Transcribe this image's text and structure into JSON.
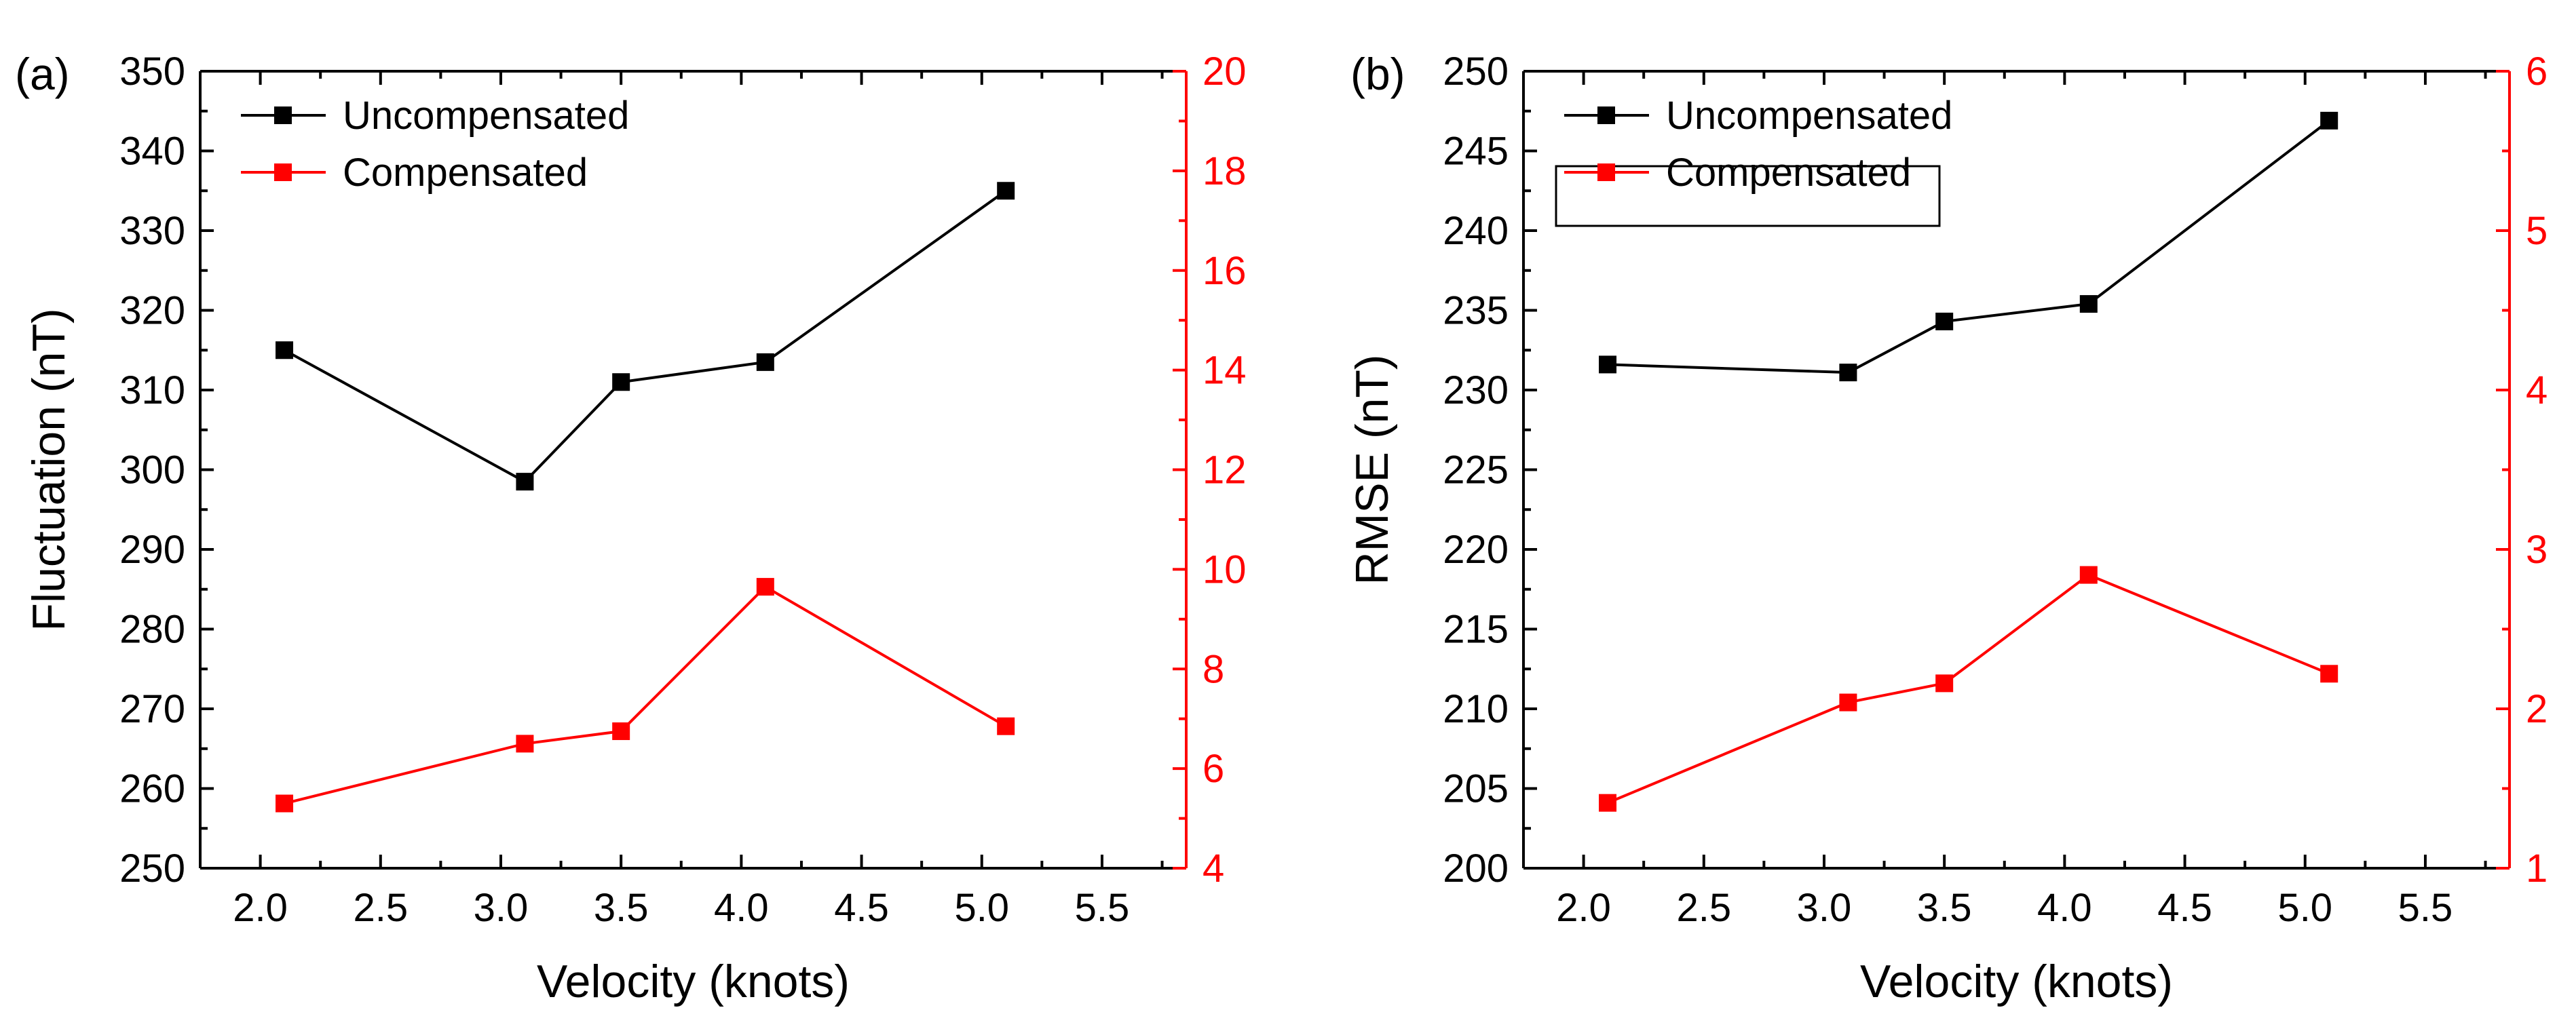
{
  "colors": {
    "primary": "#000000",
    "secondary": "#ff0000",
    "background": "#ffffff"
  },
  "chart_data": [
    {
      "panel_label": "(a)",
      "type": "line",
      "xlabel": "Velocity (knots)",
      "ylabel": "Fluctuation (nT)",
      "y2label": "",
      "xlim": [
        1.75,
        5.85
      ],
      "xticks": [
        2.0,
        2.5,
        3.0,
        3.5,
        4.0,
        4.5,
        5.0,
        5.5
      ],
      "xtick_labels": [
        "2.0",
        "2.5",
        "3.0",
        "3.5",
        "4.0",
        "4.5",
        "5.0",
        "5.5"
      ],
      "ylim": [
        250,
        350
      ],
      "yticks": [
        250,
        260,
        270,
        280,
        290,
        300,
        310,
        320,
        330,
        340,
        350
      ],
      "ytick_labels": [
        "250",
        "260",
        "270",
        "280",
        "290",
        "300",
        "310",
        "320",
        "330",
        "340",
        "350"
      ],
      "y2lim": [
        4,
        20
      ],
      "y2ticks": [
        4,
        6,
        8,
        10,
        12,
        14,
        16,
        18,
        20
      ],
      "y2tick_labels": [
        "4",
        "6",
        "8",
        "10",
        "12",
        "14",
        "16",
        "18",
        "20"
      ],
      "legend_boxed": false,
      "series": [
        {
          "name": "Uncompensated",
          "axis": "left",
          "color": "#000000",
          "x": [
            2.1,
            3.1,
            3.5,
            4.1,
            5.1
          ],
          "values": [
            315,
            298.5,
            311,
            313.5,
            335
          ]
        },
        {
          "name": "Compensated",
          "axis": "right",
          "color": "#ff0000",
          "x": [
            2.1,
            3.1,
            3.5,
            4.1,
            5.1
          ],
          "values": [
            5.3,
            6.5,
            6.75,
            9.65,
            6.85
          ]
        }
      ]
    },
    {
      "panel_label": "(b)",
      "type": "line",
      "xlabel": "Velocity (knots)",
      "ylabel": "RMSE (nT)",
      "y2label": "",
      "xlim": [
        1.75,
        5.85
      ],
      "xticks": [
        2.0,
        2.5,
        3.0,
        3.5,
        4.0,
        4.5,
        5.0,
        5.5
      ],
      "xtick_labels": [
        "2.0",
        "2.5",
        "3.0",
        "3.5",
        "4.0",
        "4.5",
        "5.0",
        "5.5"
      ],
      "ylim": [
        200,
        250
      ],
      "yticks": [
        200,
        205,
        210,
        215,
        220,
        225,
        230,
        235,
        240,
        245,
        250
      ],
      "ytick_labels": [
        "200",
        "205",
        "210",
        "215",
        "220",
        "225",
        "230",
        "235",
        "240",
        "245",
        "250"
      ],
      "y2lim": [
        1,
        6
      ],
      "y2ticks": [
        1,
        2,
        3,
        4,
        5,
        6
      ],
      "y2tick_labels": [
        "1",
        "2",
        "3",
        "4",
        "5",
        "6"
      ],
      "legend_boxed": true,
      "series": [
        {
          "name": "Uncompensated",
          "axis": "left",
          "color": "#000000",
          "x": [
            2.1,
            3.1,
            3.5,
            4.1,
            5.1
          ],
          "values": [
            231.6,
            231.1,
            234.3,
            235.4,
            246.9
          ]
        },
        {
          "name": "Compensated",
          "axis": "right",
          "color": "#ff0000",
          "x": [
            2.1,
            3.1,
            3.5,
            4.1,
            5.1
          ],
          "values": [
            1.41,
            2.04,
            2.16,
            2.84,
            2.22
          ]
        }
      ]
    }
  ]
}
